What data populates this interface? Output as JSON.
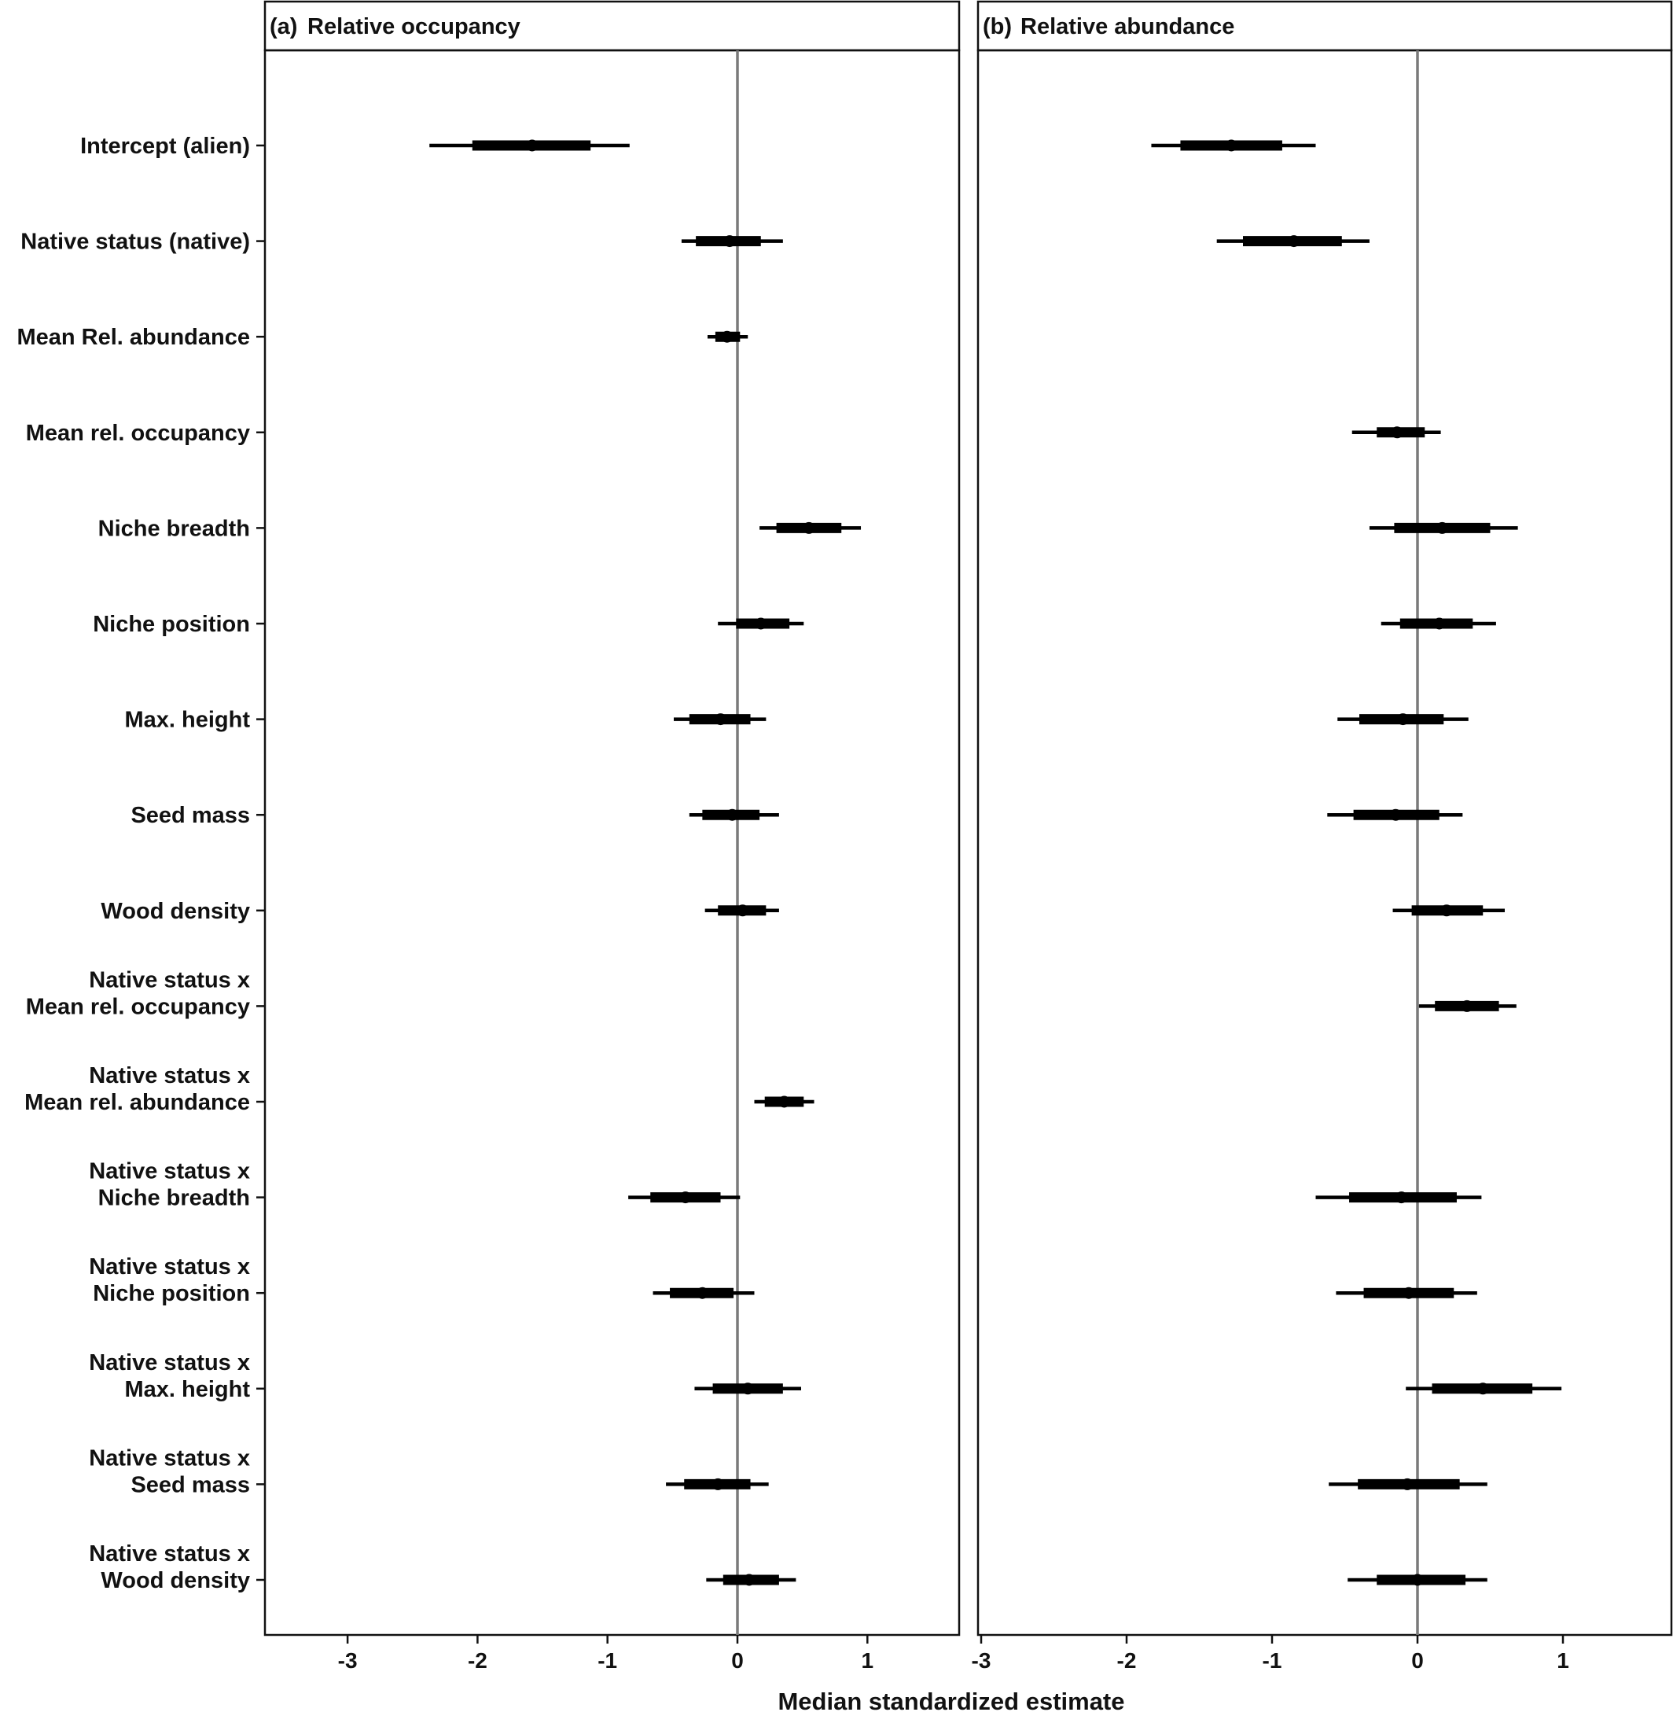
{
  "chart_data": [
    {
      "type": "forest",
      "panel_tag": "(a)",
      "title": "Relative occupancy",
      "xlabel": "Median standardized estimate",
      "xlim": [
        -3.6,
        1.7
      ],
      "x_ticks": [
        -3,
        -2,
        -1,
        0,
        1
      ],
      "reference_line": 0,
      "points": [
        {
          "term": "Intercept (alien)",
          "median": -1.58,
          "inner": [
            -2.04,
            -1.13
          ],
          "outer": [
            -2.37,
            -0.83
          ]
        },
        {
          "term": "Native status (native)",
          "median": -0.06,
          "inner": [
            -0.32,
            0.18
          ],
          "outer": [
            -0.43,
            0.35
          ]
        },
        {
          "term": "Mean Rel. abundance",
          "median": -0.08,
          "inner": [
            -0.17,
            0.02
          ],
          "outer": [
            -0.23,
            0.08
          ]
        },
        {
          "term": "Mean rel. occupancy",
          "median": null,
          "inner": null,
          "outer": null
        },
        {
          "term": "Niche breadth",
          "median": 0.55,
          "inner": [
            0.3,
            0.8
          ],
          "outer": [
            0.17,
            0.95
          ]
        },
        {
          "term": "Niche position",
          "median": 0.18,
          "inner": [
            -0.01,
            0.4
          ],
          "outer": [
            -0.15,
            0.51
          ]
        },
        {
          "term": "Max. height",
          "median": -0.13,
          "inner": [
            -0.37,
            0.1
          ],
          "outer": [
            -0.49,
            0.22
          ]
        },
        {
          "term": "Seed mass",
          "median": -0.04,
          "inner": [
            -0.27,
            0.17
          ],
          "outer": [
            -0.37,
            0.32
          ]
        },
        {
          "term": "Wood density",
          "median": 0.04,
          "inner": [
            -0.15,
            0.22
          ],
          "outer": [
            -0.25,
            0.32
          ]
        },
        {
          "term": "Native status x Mean rel. occupancy",
          "median": null,
          "inner": null,
          "outer": null
        },
        {
          "term": "Native status x Mean rel. abundance",
          "median": 0.36,
          "inner": [
            0.21,
            0.51
          ],
          "outer": [
            0.13,
            0.59
          ]
        },
        {
          "term": "Native status x Niche breadth",
          "median": -0.4,
          "inner": [
            -0.67,
            -0.13
          ],
          "outer": [
            -0.84,
            0.02
          ]
        },
        {
          "term": "Native status x Niche position",
          "median": -0.27,
          "inner": [
            -0.52,
            -0.03
          ],
          "outer": [
            -0.65,
            0.13
          ]
        },
        {
          "term": "Native status x Max. height",
          "median": 0.08,
          "inner": [
            -0.19,
            0.35
          ],
          "outer": [
            -0.33,
            0.49
          ]
        },
        {
          "term": "Native status x Seed mass",
          "median": -0.15,
          "inner": [
            -0.41,
            0.1
          ],
          "outer": [
            -0.55,
            0.24
          ]
        },
        {
          "term": "Native status x Wood density",
          "median": 0.09,
          "inner": [
            -0.11,
            0.32
          ],
          "outer": [
            -0.24,
            0.45
          ]
        }
      ]
    },
    {
      "type": "forest",
      "panel_tag": "(b)",
      "title": "Relative abundance",
      "xlabel": "Median standardized estimate",
      "xlim": [
        -3.0,
        1.75
      ],
      "x_ticks": [
        -3,
        -2,
        -1,
        0,
        1
      ],
      "reference_line": 0,
      "points": [
        {
          "term": "Intercept (alien)",
          "median": -1.28,
          "inner": [
            -1.63,
            -0.93
          ],
          "outer": [
            -1.83,
            -0.7
          ]
        },
        {
          "term": "Native status (native)",
          "median": -0.85,
          "inner": [
            -1.2,
            -0.52
          ],
          "outer": [
            -1.38,
            -0.33
          ]
        },
        {
          "term": "Mean Rel. abundance",
          "median": null,
          "inner": null,
          "outer": null
        },
        {
          "term": "Mean rel. occupancy",
          "median": -0.14,
          "inner": [
            -0.28,
            0.05
          ],
          "outer": [
            -0.45,
            0.16
          ]
        },
        {
          "term": "Niche breadth",
          "median": 0.17,
          "inner": [
            -0.16,
            0.5
          ],
          "outer": [
            -0.33,
            0.69
          ]
        },
        {
          "term": "Niche position",
          "median": 0.15,
          "inner": [
            -0.12,
            0.38
          ],
          "outer": [
            -0.25,
            0.54
          ]
        },
        {
          "term": "Max. height",
          "median": -0.1,
          "inner": [
            -0.4,
            0.18
          ],
          "outer": [
            -0.55,
            0.35
          ]
        },
        {
          "term": "Seed mass",
          "median": -0.15,
          "inner": [
            -0.44,
            0.15
          ],
          "outer": [
            -0.62,
            0.31
          ]
        },
        {
          "term": "Wood density",
          "median": 0.2,
          "inner": [
            -0.04,
            0.45
          ],
          "outer": [
            -0.17,
            0.6
          ]
        },
        {
          "term": "Native status x Mean rel. occupancy",
          "median": 0.34,
          "inner": [
            0.12,
            0.56
          ],
          "outer": [
            0.01,
            0.68
          ]
        },
        {
          "term": "Native status x Mean rel. abundance",
          "median": null,
          "inner": null,
          "outer": null
        },
        {
          "term": "Native status x Niche breadth",
          "median": -0.11,
          "inner": [
            -0.47,
            0.27
          ],
          "outer": [
            -0.7,
            0.44
          ]
        },
        {
          "term": "Native status x Niche position",
          "median": -0.06,
          "inner": [
            -0.37,
            0.25
          ],
          "outer": [
            -0.56,
            0.41
          ]
        },
        {
          "term": "Native status x Max. height",
          "median": 0.45,
          "inner": [
            0.1,
            0.79
          ],
          "outer": [
            -0.08,
            0.99
          ]
        },
        {
          "term": "Native status x Seed mass",
          "median": -0.07,
          "inner": [
            -0.41,
            0.29
          ],
          "outer": [
            -0.61,
            0.48
          ]
        },
        {
          "term": "Native status x Wood density",
          "median": 0.0,
          "inner": [
            -0.28,
            0.33
          ],
          "outer": [
            -0.48,
            0.48
          ]
        }
      ]
    }
  ],
  "row_labels": [
    [
      "Intercept (alien)"
    ],
    [
      "Native status (native)"
    ],
    [
      "Mean Rel. abundance"
    ],
    [
      "Mean rel. occupancy"
    ],
    [
      "Niche breadth"
    ],
    [
      "Niche position"
    ],
    [
      "Max. height"
    ],
    [
      "Seed mass"
    ],
    [
      "Wood density"
    ],
    [
      "Native status x",
      "Mean rel. occupancy"
    ],
    [
      "Native status x",
      "Mean rel. abundance"
    ],
    [
      "Native status x",
      "Niche breadth"
    ],
    [
      "Native status x",
      "Niche position"
    ],
    [
      "Native status x",
      "Max. height"
    ],
    [
      "Native status x",
      "Seed mass"
    ],
    [
      "Native status x",
      "Wood density"
    ]
  ],
  "colors": {
    "interval": "#000000",
    "reference_line": "#7a7a7a",
    "frame": "#111111"
  }
}
